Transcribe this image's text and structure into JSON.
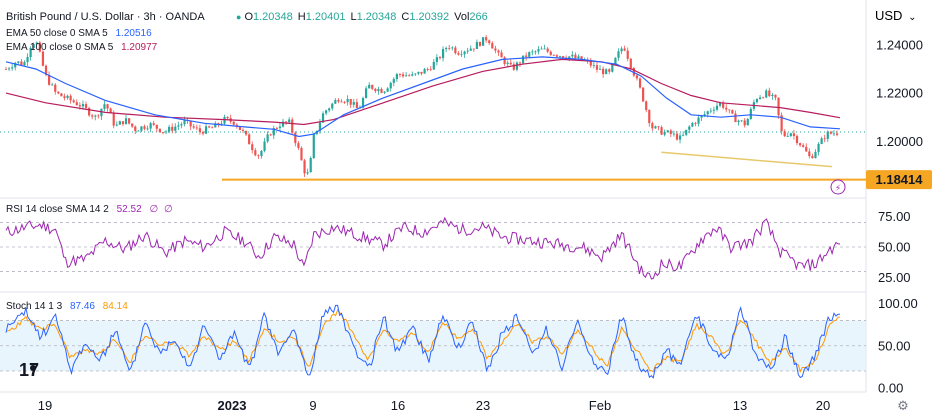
{
  "header": {
    "symbol": "British Pound / U.S. Dollar · 3h · OANDA",
    "ohlc": [
      {
        "k": "O",
        "v": "1.20348"
      },
      {
        "k": "H",
        "v": "1.20401"
      },
      {
        "k": "L",
        "v": "1.20348"
      },
      {
        "k": "C",
        "v": "1.20392"
      }
    ],
    "vol_label": "Vol",
    "vol_value": "266",
    "currency": "USD",
    "ema50_label": "EMA 50 close 0 SMA 5",
    "ema50_value": "1.20516",
    "ema100_label": "EMA 100 close 0 SMA 5",
    "ema100_value": "1.20977"
  },
  "colors": {
    "up": "#26a69a",
    "down": "#ef5350",
    "ema50": "#2962ff",
    "ema100": "#b71c5c",
    "support": "#f5a623",
    "trend": "#e8c96a",
    "rsi": "#9c27b0",
    "stoch_k": "#2962ff",
    "stoch_d": "#ff9800",
    "band": "#e3f2fd"
  },
  "chart_data": [
    {
      "type": "candlestick",
      "title": "British Pound / U.S. Dollar · 3h · OANDA",
      "y_ticks": [
        "1.24000",
        "1.22000",
        "1.20000"
      ],
      "ylim": [
        1.179,
        1.247
      ],
      "x_ticks": [
        "19",
        "2023",
        "9",
        "16",
        "23",
        "Feb",
        "13",
        "20"
      ],
      "support_level": 1.18414,
      "support_label": "1.18414",
      "trendline": {
        "from": 1.1955,
        "to": 1.1895
      },
      "series": [
        {
          "name": "EMA 50 close 0 SMA 5",
          "last": 1.20516
        },
        {
          "name": "EMA 100 close 0 SMA 5",
          "last": 1.20977
        }
      ],
      "close_path": [
        [
          0,
          1.23
        ],
        [
          10,
          1.233
        ],
        [
          18,
          1.232
        ],
        [
          25,
          1.24
        ],
        [
          30,
          1.242
        ],
        [
          40,
          1.227
        ],
        [
          50,
          1.22
        ],
        [
          60,
          1.218
        ],
        [
          75,
          1.215
        ],
        [
          90,
          1.21
        ],
        [
          100,
          1.216
        ],
        [
          110,
          1.206
        ],
        [
          120,
          1.209
        ],
        [
          130,
          1.205
        ],
        [
          145,
          1.207
        ],
        [
          160,
          1.204
        ],
        [
          180,
          1.208
        ],
        [
          195,
          1.204
        ],
        [
          210,
          1.206
        ],
        [
          220,
          1.209
        ],
        [
          230,
          1.208
        ],
        [
          240,
          1.203
        ],
        [
          250,
          1.196
        ],
        [
          255,
          1.194
        ],
        [
          265,
          1.203
        ],
        [
          275,
          1.207
        ],
        [
          285,
          1.208
        ],
        [
          295,
          1.196
        ],
        [
          300,
          1.188
        ],
        [
          305,
          1.186
        ],
        [
          310,
          1.202
        ],
        [
          320,
          1.212
        ],
        [
          335,
          1.218
        ],
        [
          345,
          1.217
        ],
        [
          355,
          1.213
        ],
        [
          365,
          1.223
        ],
        [
          380,
          1.221
        ],
        [
          395,
          1.228
        ],
        [
          410,
          1.227
        ],
        [
          425,
          1.23
        ],
        [
          435,
          1.234
        ],
        [
          445,
          1.24
        ],
        [
          455,
          1.237
        ],
        [
          470,
          1.239
        ],
        [
          485,
          1.243
        ],
        [
          495,
          1.236
        ],
        [
          510,
          1.23
        ],
        [
          525,
          1.236
        ],
        [
          540,
          1.238
        ],
        [
          555,
          1.236
        ],
        [
          570,
          1.235
        ],
        [
          585,
          1.233
        ],
        [
          595,
          1.23
        ],
        [
          608,
          1.228
        ],
        [
          615,
          1.235
        ],
        [
          622,
          1.24
        ],
        [
          630,
          1.231
        ],
        [
          640,
          1.22
        ],
        [
          650,
          1.206
        ],
        [
          660,
          1.204
        ],
        [
          670,
          1.203
        ],
        [
          680,
          1.201
        ],
        [
          690,
          1.207
        ],
        [
          700,
          1.21
        ],
        [
          712,
          1.214
        ],
        [
          720,
          1.216
        ],
        [
          732,
          1.21
        ],
        [
          745,
          1.207
        ],
        [
          755,
          1.218
        ],
        [
          765,
          1.22
        ],
        [
          775,
          1.217
        ],
        [
          782,
          1.202
        ],
        [
          790,
          1.204
        ],
        [
          800,
          1.199
        ],
        [
          810,
          1.193
        ],
        [
          818,
          1.198
        ],
        [
          826,
          1.203
        ],
        [
          834,
          1.2035
        ],
        [
          840,
          1.2039
        ]
      ],
      "ema50_path": [
        [
          0,
          1.233
        ],
        [
          30,
          1.23
        ],
        [
          60,
          1.224
        ],
        [
          100,
          1.217
        ],
        [
          150,
          1.211
        ],
        [
          200,
          1.2075
        ],
        [
          240,
          1.206
        ],
        [
          270,
          1.205
        ],
        [
          295,
          1.202
        ],
        [
          310,
          1.203
        ],
        [
          340,
          1.211
        ],
        [
          380,
          1.218
        ],
        [
          420,
          1.224
        ],
        [
          460,
          1.23
        ],
        [
          500,
          1.234
        ],
        [
          540,
          1.235
        ],
        [
          580,
          1.234
        ],
        [
          615,
          1.232
        ],
        [
          640,
          1.227
        ],
        [
          665,
          1.218
        ],
        [
          690,
          1.211
        ],
        [
          720,
          1.21
        ],
        [
          750,
          1.211
        ],
        [
          780,
          1.21
        ],
        [
          810,
          1.206
        ],
        [
          840,
          1.2052
        ]
      ],
      "ema100_path": [
        [
          0,
          1.22
        ],
        [
          40,
          1.216
        ],
        [
          100,
          1.212
        ],
        [
          160,
          1.21
        ],
        [
          220,
          1.209
        ],
        [
          270,
          1.208
        ],
        [
          300,
          1.207
        ],
        [
          330,
          1.209
        ],
        [
          380,
          1.216
        ],
        [
          430,
          1.223
        ],
        [
          480,
          1.229
        ],
        [
          520,
          1.232
        ],
        [
          560,
          1.234
        ],
        [
          600,
          1.233
        ],
        [
          630,
          1.23
        ],
        [
          660,
          1.224
        ],
        [
          690,
          1.219
        ],
        [
          720,
          1.216
        ],
        [
          750,
          1.215
        ],
        [
          780,
          1.214
        ],
        [
          810,
          1.212
        ],
        [
          840,
          1.2098
        ]
      ]
    },
    {
      "type": "line",
      "title": "RSI 14 close SMA 14 2",
      "series_name": "RSI 14 close SMA 14 2",
      "value": "52.52",
      "extra_labels": [
        "∅",
        "∅"
      ],
      "y_ticks": [
        "75.00",
        "50.00",
        "25.00"
      ],
      "ylim": [
        15,
        85
      ],
      "bands": [
        70,
        50,
        30
      ],
      "x": [
        0,
        20,
        35,
        50,
        60,
        80,
        100,
        120,
        140,
        160,
        180,
        200,
        220,
        240,
        255,
        270,
        290,
        300,
        310,
        330,
        360,
        380,
        400,
        420,
        440,
        460,
        480,
        500,
        520,
        540,
        560,
        580,
        600,
        620,
        640,
        650,
        660,
        680,
        700,
        715,
        730,
        750,
        765,
        780,
        800,
        815,
        830,
        840
      ],
      "values": [
        62,
        66,
        68,
        64,
        38,
        40,
        55,
        48,
        60,
        45,
        55,
        50,
        62,
        55,
        42,
        58,
        52,
        32,
        60,
        66,
        58,
        52,
        66,
        62,
        70,
        64,
        66,
        58,
        56,
        54,
        52,
        50,
        42,
        60,
        30,
        24,
        36,
        34,
        56,
        66,
        50,
        54,
        70,
        46,
        34,
        36,
        48,
        52.52
      ]
    },
    {
      "type": "line",
      "title": "Stoch 14 1 3",
      "y_ticks": [
        "100.00",
        "50.00",
        "0.00"
      ],
      "ylim": [
        -5,
        108
      ],
      "bands": [
        80,
        50,
        20
      ],
      "series": [
        {
          "name": "%K",
          "value": "87.46",
          "x": [
            0,
            20,
            35,
            50,
            65,
            80,
            95,
            110,
            125,
            140,
            155,
            170,
            185,
            200,
            215,
            230,
            245,
            260,
            275,
            290,
            305,
            320,
            335,
            350,
            365,
            380,
            395,
            410,
            425,
            440,
            455,
            470,
            485,
            500,
            515,
            530,
            545,
            560,
            575,
            590,
            605,
            620,
            635,
            650,
            665,
            680,
            695,
            710,
            725,
            740,
            755,
            770,
            785,
            800,
            815,
            830,
            840
          ],
          "values": [
            70,
            90,
            60,
            85,
            20,
            55,
            30,
            70,
            15,
            80,
            40,
            60,
            25,
            75,
            35,
            65,
            20,
            85,
            40,
            70,
            10,
            90,
            95,
            50,
            20,
            85,
            40,
            75,
            30,
            90,
            45,
            80,
            20,
            65,
            85,
            40,
            70,
            25,
            80,
            35,
            15,
            85,
            30,
            10,
            45,
            25,
            90,
            50,
            30,
            95,
            40,
            20,
            60,
            10,
            40,
            85,
            87.46
          ]
        },
        {
          "name": "%D",
          "value": "84.14",
          "x": [
            0,
            20,
            35,
            50,
            65,
            80,
            95,
            110,
            125,
            140,
            155,
            170,
            185,
            200,
            215,
            230,
            245,
            260,
            275,
            290,
            305,
            320,
            335,
            350,
            365,
            380,
            395,
            410,
            425,
            440,
            455,
            470,
            485,
            500,
            515,
            530,
            545,
            560,
            575,
            590,
            605,
            620,
            635,
            650,
            665,
            680,
            695,
            710,
            725,
            740,
            755,
            770,
            785,
            800,
            815,
            830,
            840
          ],
          "values": [
            65,
            82,
            70,
            75,
            35,
            45,
            40,
            58,
            30,
            62,
            52,
            55,
            38,
            62,
            45,
            55,
            32,
            70,
            55,
            60,
            25,
            75,
            92,
            65,
            32,
            70,
            55,
            65,
            42,
            78,
            58,
            72,
            35,
            55,
            78,
            55,
            62,
            38,
            68,
            48,
            25,
            70,
            45,
            20,
            35,
            32,
            75,
            62,
            38,
            82,
            55,
            30,
            48,
            22,
            32,
            75,
            84.14
          ]
        }
      ]
    }
  ],
  "misc": {
    "bolt_icon": "⚡",
    "settings_icon": "⚙",
    "logo_text": "17",
    "currency_caret": "⌄"
  }
}
